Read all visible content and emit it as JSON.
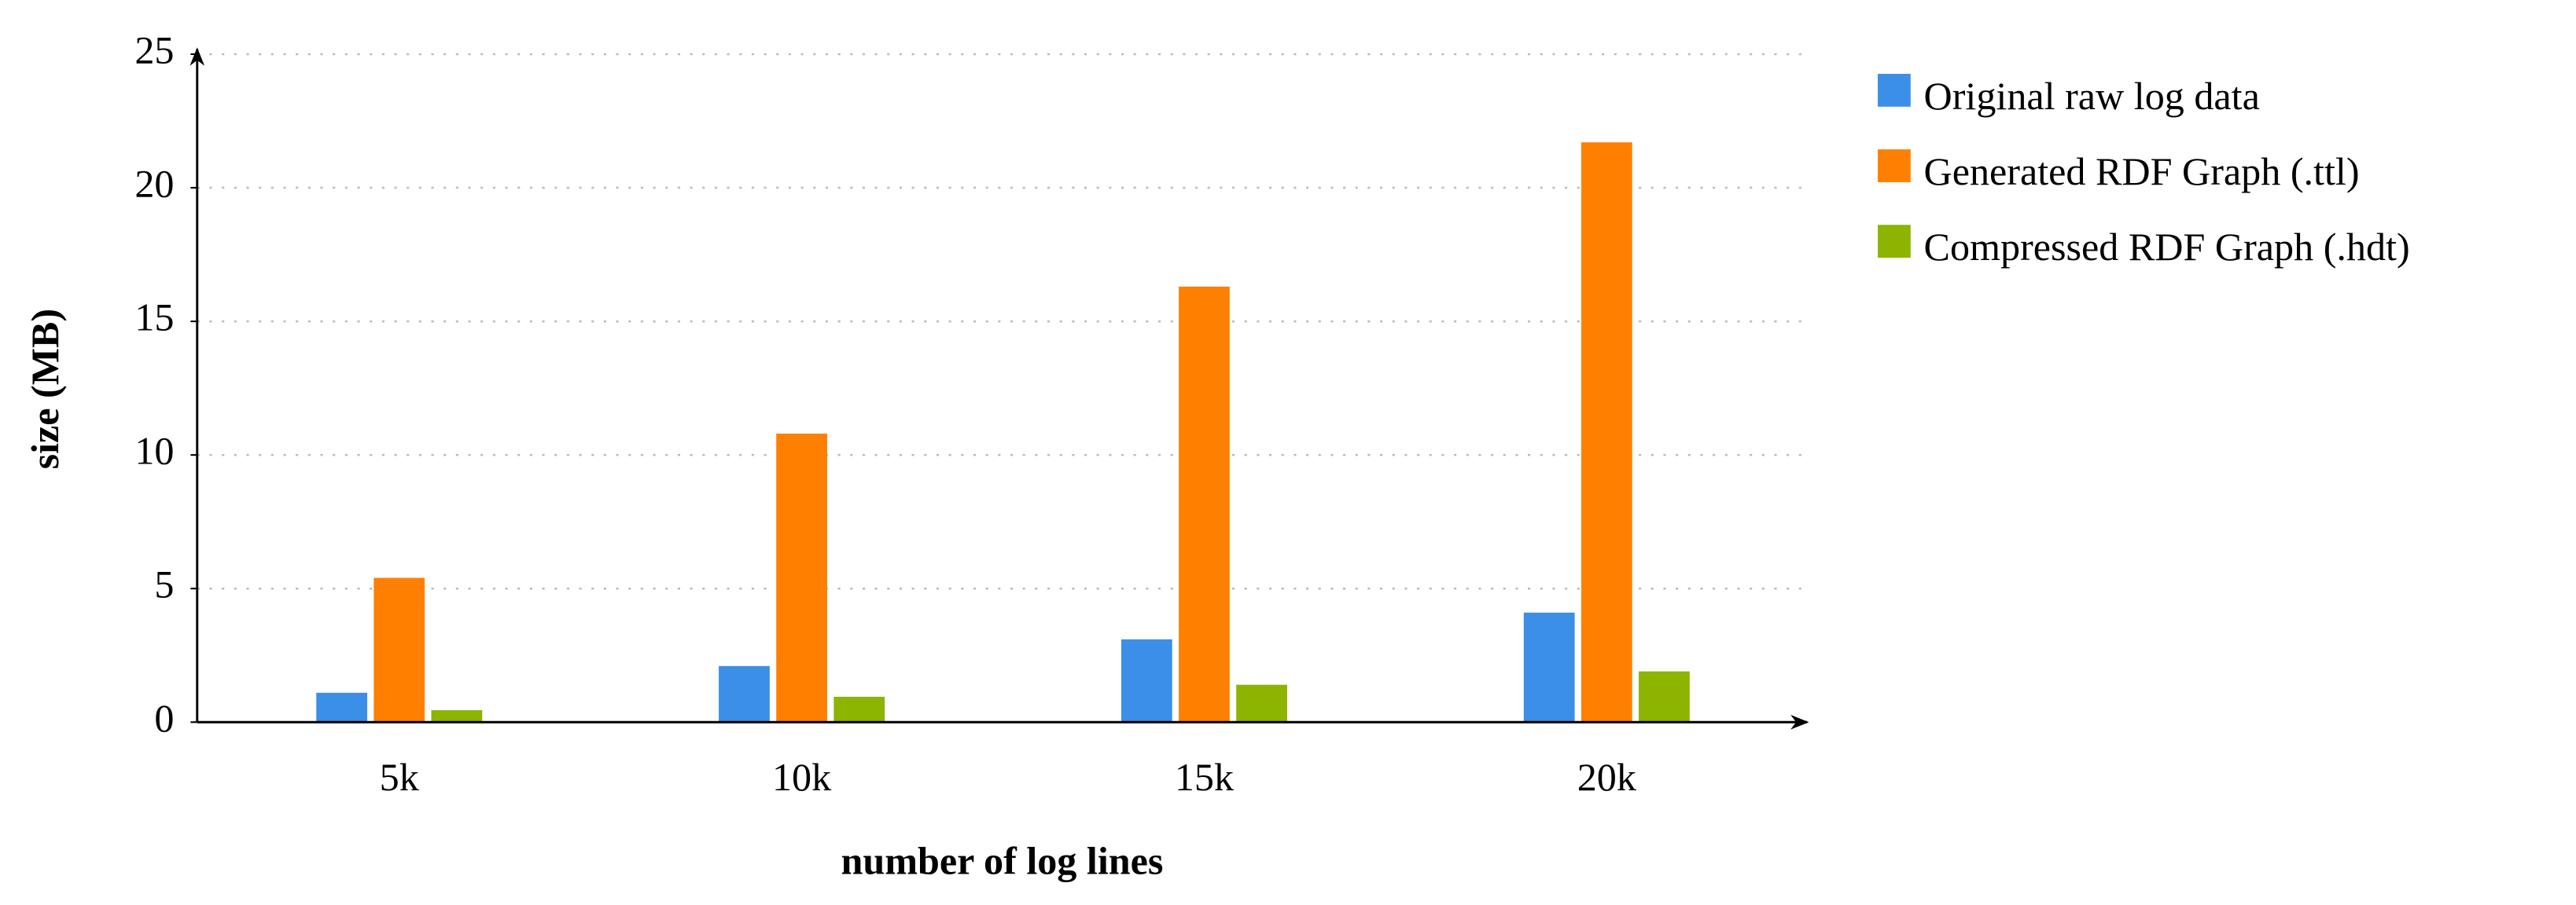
{
  "chart_data": {
    "type": "bar",
    "x_label": "number of log lines",
    "y_label": "size (MB)",
    "categories": [
      "5k",
      "10k",
      "15k",
      "20k"
    ],
    "series": [
      {
        "name": "Original raw log data",
        "color": "#3b8fe6",
        "values": [
          1.1,
          2.1,
          3.1,
          4.1
        ]
      },
      {
        "name": "Generated RDF Graph (.ttl)",
        "color": "#ff8000",
        "values": [
          5.4,
          10.8,
          16.3,
          21.7
        ]
      },
      {
        "name": "Compressed RDF Graph (.hdt)",
        "color": "#8cb400",
        "values": [
          0.45,
          0.95,
          1.4,
          1.9
        ]
      }
    ],
    "ylim": [
      0,
      25
    ],
    "yticks": [
      0,
      5,
      10,
      15,
      20,
      25
    ],
    "grid": true,
    "legend": "right"
  }
}
